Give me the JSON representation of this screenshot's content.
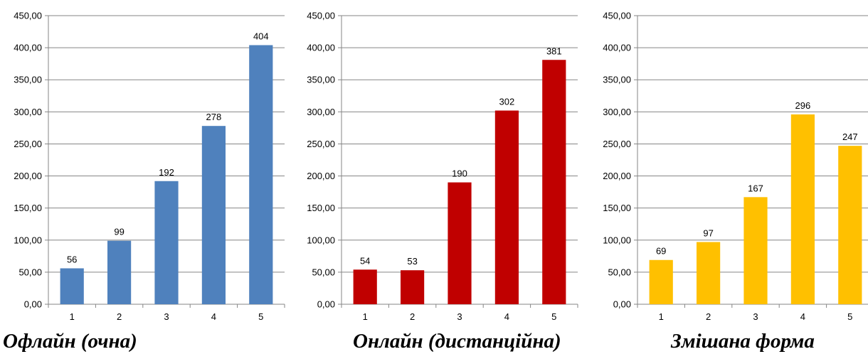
{
  "chart_data": [
    {
      "type": "bar",
      "title": "Офлайн (очна)",
      "categories": [
        "1",
        "2",
        "3",
        "4",
        "5"
      ],
      "values": [
        56,
        99,
        192,
        278,
        404
      ],
      "data_labels": [
        "56",
        "99",
        "192",
        "278",
        "404"
      ],
      "ylim": [
        0,
        450
      ],
      "yticks": [
        "0,00",
        "50,00",
        "100,00",
        "150,00",
        "200,00",
        "250,00",
        "300,00",
        "350,00",
        "400,00",
        "450,00"
      ],
      "color": "#4f81bd",
      "grid": true,
      "xlabel": "",
      "ylabel": ""
    },
    {
      "type": "bar",
      "title": "Онлайн (дистанційна)",
      "categories": [
        "1",
        "2",
        "3",
        "4",
        "5"
      ],
      "values": [
        54,
        53,
        190,
        302,
        381
      ],
      "data_labels": [
        "54",
        "53",
        "190",
        "302",
        "381"
      ],
      "ylim": [
        0,
        450
      ],
      "yticks": [
        "0,00",
        "50,00",
        "100,00",
        "150,00",
        "200,00",
        "250,00",
        "300,00",
        "350,00",
        "400,00",
        "450,00"
      ],
      "color": "#c00000",
      "grid": true,
      "xlabel": "",
      "ylabel": ""
    },
    {
      "type": "bar",
      "title": "Змішана форма",
      "categories": [
        "1",
        "2",
        "3",
        "4",
        "5"
      ],
      "values": [
        69,
        97,
        167,
        296,
        247
      ],
      "data_labels": [
        "69",
        "97",
        "167",
        "296",
        "247"
      ],
      "ylim": [
        0,
        450
      ],
      "yticks": [
        "0,00",
        "50,00",
        "100,00",
        "150,00",
        "200,00",
        "250,00",
        "300,00",
        "350,00",
        "400,00",
        "450,00"
      ],
      "color": "#ffc000",
      "grid": true,
      "xlabel": "",
      "ylabel": ""
    }
  ]
}
